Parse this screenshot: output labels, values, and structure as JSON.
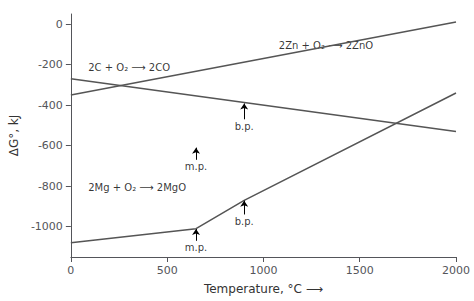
{
  "chart_data": {
    "type": "line",
    "xlabel": "Temperature, °C ⟶",
    "ylabel": "ΔG°, kJ",
    "xlim": [
      0,
      2000
    ],
    "ylim": [
      -1150,
      50
    ],
    "xticks": [
      0,
      500,
      1000,
      1500,
      2000
    ],
    "yticks": [
      0,
      -200,
      -400,
      -600,
      -800,
      -1000
    ],
    "grid": false,
    "series": [
      {
        "name": "2Zn + O₂ ⟶ 2ZnO",
        "color": "#555555",
        "x": [
          0,
          2000
        ],
        "values": [
          -350,
          10
        ],
        "label_x": 1080,
        "label_y": -105
      },
      {
        "name": "2C + O₂ ⟶ 2CO",
        "color": "#555555",
        "x": [
          0,
          2000
        ],
        "values": [
          -270,
          -530
        ],
        "label_x": 90,
        "label_y": -215
      },
      {
        "name": "2Mg + O₂ ⟶ 2MgO",
        "color": "#555555",
        "x": [
          0,
          650,
          900,
          2000
        ],
        "values": [
          -1080,
          -1010,
          -870,
          -340
        ],
        "label_x": 90,
        "label_y": -808
      }
    ],
    "annotations": [
      {
        "text": "m.p.",
        "x": 650,
        "y": -610,
        "text_x": 650,
        "text_y": -670
      },
      {
        "text": "b.p.",
        "x": 900,
        "y": -392,
        "text_x": 900,
        "text_y": -470
      },
      {
        "text": "m.p.",
        "x": 650,
        "y": -1012,
        "text_x": 650,
        "text_y": -1070
      },
      {
        "text": "b.p.",
        "x": 900,
        "y": -872,
        "text_x": 900,
        "text_y": -940
      }
    ]
  }
}
